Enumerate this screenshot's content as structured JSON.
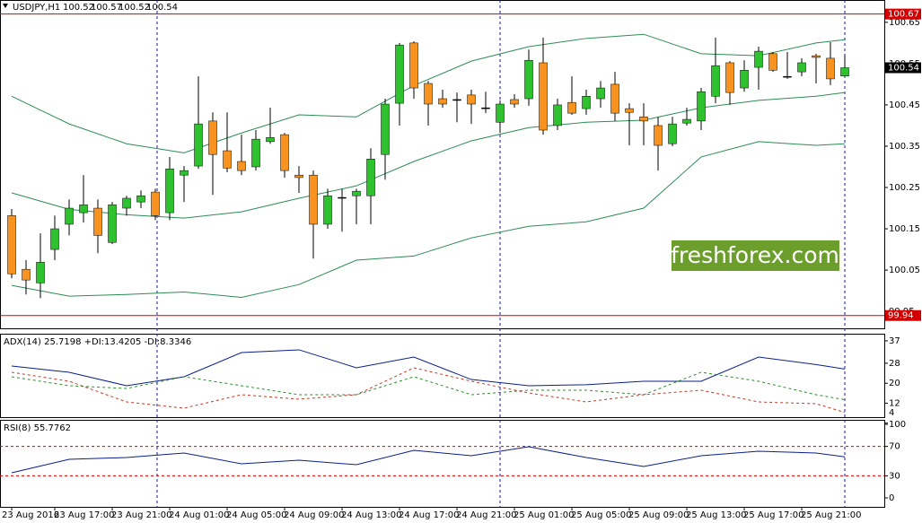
{
  "watermark": "freshforex.com",
  "chart_data": [
    {
      "type": "candlestick",
      "title": "USDJPY,H1",
      "categories": [
        "23 Aug 2016",
        null,
        null,
        "23 Aug 17:00",
        null,
        null,
        null,
        "23 Aug 21:00",
        null,
        null,
        null,
        "24 Aug 01:00",
        null,
        null,
        null,
        "24 Aug 05:00",
        null,
        null,
        null,
        "24 Aug 09:00",
        null,
        null,
        null,
        "24 Aug 13:00",
        null,
        null,
        null,
        "24 Aug 17:00",
        null,
        null,
        null,
        "24 Aug 21:00",
        null,
        null,
        null,
        "25 Aug 01:00",
        null,
        null,
        null,
        "25 Aug 05:00",
        null,
        null,
        null,
        "25 Aug 09:00",
        null,
        null,
        null,
        "25 Aug 13:00",
        null,
        null,
        null,
        "25 Aug 17:00",
        null,
        null,
        null,
        "25 Aug 21:00",
        null,
        null,
        null
      ],
      "open": [
        100.182,
        100.052,
        100.019,
        100.1,
        100.161,
        100.189,
        100.2,
        100.117,
        100.2,
        100.215,
        100.239,
        100.189,
        100.28,
        100.302,
        100.411,
        100.339,
        100.313,
        100.3,
        100.361,
        100.378,
        100.28,
        100.28,
        100.161,
        100.226,
        100.23,
        100.23,
        100.33,
        100.454,
        100.6,
        100.502,
        100.465,
        100.463,
        100.474,
        100.443,
        100.408,
        100.463,
        100.465,
        100.552,
        100.4,
        100.456,
        100.441,
        100.465,
        100.5,
        100.441,
        100.421,
        100.4,
        100.356,
        100.406,
        100.411,
        100.471,
        100.552,
        100.491,
        100.541,
        100.574,
        100.519,
        100.53,
        100.569,
        100.563,
        100.52
      ],
      "high": [
        100.198,
        100.074,
        100.139,
        100.182,
        100.221,
        100.28,
        100.221,
        100.215,
        100.23,
        100.243,
        100.247,
        100.324,
        100.302,
        100.519,
        100.432,
        100.432,
        100.378,
        100.389,
        100.443,
        100.382,
        100.302,
        100.291,
        100.247,
        100.247,
        100.247,
        100.345,
        100.465,
        100.6,
        100.604,
        100.508,
        100.487,
        100.48,
        100.487,
        100.482,
        100.461,
        100.476,
        100.584,
        100.613,
        100.465,
        100.519,
        100.487,
        100.508,
        100.53,
        100.454,
        100.454,
        100.421,
        100.421,
        100.443,
        100.491,
        100.613,
        100.556,
        100.558,
        100.591,
        100.578,
        100.578,
        100.563,
        100.574,
        100.602,
        100.57
      ],
      "low": [
        100.03,
        99.991,
        99.982,
        100.074,
        100.134,
        100.165,
        100.091,
        100.113,
        100.182,
        100.2,
        100.171,
        100.171,
        100.215,
        100.295,
        100.232,
        100.287,
        100.28,
        100.291,
        100.356,
        100.274,
        100.237,
        100.078,
        100.15,
        100.143,
        100.161,
        100.161,
        100.269,
        100.4,
        100.465,
        100.4,
        100.443,
        100.408,
        100.404,
        100.43,
        100.382,
        100.443,
        100.448,
        100.378,
        100.389,
        100.426,
        100.426,
        100.443,
        100.411,
        100.352,
        100.352,
        100.291,
        100.35,
        100.4,
        100.389,
        100.454,
        100.45,
        100.482,
        100.487,
        100.53,
        100.513,
        100.519,
        100.502,
        100.498,
        100.52
      ],
      "close": [
        100.041,
        100.026,
        100.069,
        100.15,
        100.2,
        100.208,
        100.134,
        100.208,
        100.224,
        100.23,
        100.182,
        100.295,
        100.291,
        100.404,
        100.33,
        100.297,
        100.291,
        100.367,
        100.371,
        100.291,
        100.274,
        100.161,
        100.23,
        100.226,
        100.241,
        100.319,
        100.452,
        100.595,
        100.491,
        100.452,
        100.452,
        100.463,
        100.452,
        100.443,
        100.452,
        100.452,
        100.558,
        100.389,
        100.45,
        100.43,
        100.471,
        100.491,
        100.43,
        100.432,
        100.411,
        100.352,
        100.404,
        100.415,
        100.482,
        100.545,
        100.48,
        100.534,
        100.58,
        100.534,
        100.519,
        100.552,
        100.565,
        100.513,
        100.54
      ],
      "up_color": "#2fc22f",
      "down_color": "#f7931e",
      "doji_color": "#000000",
      "bands": {
        "color": "#2e8b57",
        "x": [
          0,
          4,
          8,
          12,
          16,
          20,
          24,
          28,
          32,
          36,
          40,
          44,
          48,
          52,
          56,
          58
        ],
        "upper": [
          100.471,
          100.404,
          100.356,
          100.334,
          100.382,
          100.426,
          100.421,
          100.497,
          100.556,
          100.591,
          100.611,
          100.621,
          100.574,
          100.569,
          100.6,
          100.608
        ],
        "middle": [
          100.237,
          100.197,
          100.184,
          100.176,
          100.191,
          100.224,
          100.254,
          100.313,
          100.363,
          100.395,
          100.408,
          100.413,
          100.443,
          100.461,
          100.471,
          100.48
        ],
        "lower": [
          100.013,
          99.987,
          99.991,
          99.997,
          99.984,
          100.015,
          100.074,
          100.084,
          100.128,
          100.156,
          100.167,
          100.2,
          100.324,
          100.361,
          100.352,
          100.356
        ]
      },
      "hlines": [
        100.67,
        99.94
      ],
      "hline_color": "#d40000",
      "ylim": [
        99.909,
        100.704
      ],
      "yticks": [
        100.65,
        100.55,
        100.45,
        100.35,
        100.25,
        100.15,
        100.05,
        99.95
      ]
    },
    {
      "type": "line",
      "title": "ADX(14) 25.7198 +DI:13.4205 -DI:8.3346",
      "x": [
        0,
        4,
        8,
        12,
        16,
        20,
        24,
        28,
        32,
        36,
        40,
        44,
        48,
        52,
        56,
        58
      ],
      "series": [
        {
          "color": "#0b1f8c",
          "dash": false,
          "values": [
            26.9,
            24.4,
            19.0,
            22.6,
            32.3,
            33.4,
            26.2,
            30.5,
            21.5,
            19.0,
            19.4,
            20.8,
            20.8,
            30.5,
            27.5,
            25.7
          ]
        },
        {
          "color": "#2e8b2e",
          "dash": true,
          "values": [
            22.6,
            19.0,
            17.9,
            22.6,
            19.0,
            15.4,
            15.4,
            22.6,
            15.4,
            17.2,
            17.2,
            15.4,
            24.4,
            20.8,
            15.4,
            13.4
          ]
        },
        {
          "color": "#c0392b",
          "dash": true,
          "values": [
            24.4,
            20.8,
            12.5,
            10.0,
            15.4,
            13.6,
            15.4,
            26.2,
            20.8,
            16.1,
            12.5,
            15.4,
            17.2,
            12.5,
            11.8,
            8.3
          ]
        }
      ],
      "ylim": [
        6.4,
        39.5
      ],
      "yticks": [
        37,
        28,
        20,
        12,
        4
      ]
    },
    {
      "type": "line",
      "title": "RSI(8) 55.7762",
      "x": [
        0,
        4,
        8,
        12,
        16,
        20,
        24,
        28,
        32,
        36,
        40,
        44,
        48,
        52,
        56,
        58
      ],
      "series": [
        {
          "color": "#0b1f8c",
          "dash": false,
          "values": [
            34.1,
            52.4,
            54.9,
            61.0,
            46.3,
            51.2,
            45.1,
            64.6,
            57.3,
            69.5,
            54.9,
            42.7,
            57.3,
            63.4,
            61.0,
            55.8
          ]
        }
      ],
      "levels": [
        70,
        30
      ],
      "level_color": "#d40000",
      "ylim": [
        -12.2,
        104.9
      ],
      "yticks": [
        100,
        70,
        30,
        0
      ]
    }
  ]
}
